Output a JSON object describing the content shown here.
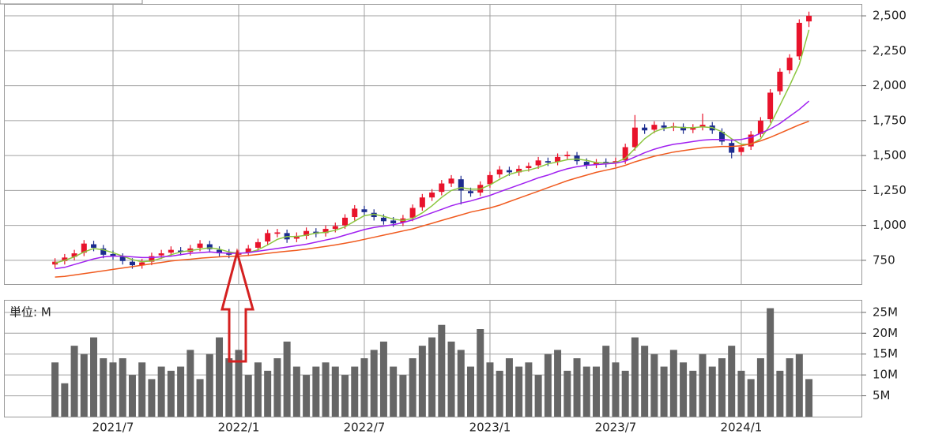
{
  "chart_data": [
    {
      "type": "candlestick",
      "open": [
        720,
        745,
        775,
        805,
        865,
        835,
        795,
        775,
        740,
        715,
        740,
        785,
        805,
        820,
        810,
        840,
        865,
        825,
        805,
        790,
        805,
        840,
        885,
        940,
        945,
        905,
        925,
        955,
        945,
        975,
        1000,
        1060,
        1115,
        1090,
        1055,
        1035,
        1020,
        1055,
        1130,
        1200,
        1240,
        1300,
        1330,
        1245,
        1235,
        1295,
        1365,
        1395,
        1380,
        1410,
        1430,
        1460,
        1455,
        1495,
        1500,
        1455,
        1435,
        1455,
        1445,
        1465,
        1560,
        1700,
        1685,
        1715,
        1700,
        1705,
        1685,
        1705,
        1715,
        1670,
        1590,
        1525,
        1565,
        1655,
        1760,
        1960,
        2110,
        2210,
        2460
      ],
      "high": [
        765,
        795,
        825,
        895,
        890,
        860,
        820,
        800,
        765,
        760,
        805,
        825,
        850,
        845,
        860,
        895,
        890,
        850,
        830,
        825,
        860,
        905,
        970,
        975,
        970,
        950,
        985,
        980,
        1000,
        1020,
        1080,
        1145,
        1140,
        1115,
        1080,
        1060,
        1075,
        1150,
        1225,
        1260,
        1325,
        1360,
        1355,
        1270,
        1315,
        1385,
        1425,
        1420,
        1430,
        1450,
        1490,
        1485,
        1515,
        1530,
        1525,
        1480,
        1475,
        1480,
        1485,
        1585,
        1790,
        1725,
        1745,
        1740,
        1735,
        1730,
        1725,
        1800,
        1740,
        1695,
        1615,
        1585,
        1675,
        1775,
        1975,
        2125,
        2225,
        2475,
        2530
      ],
      "low": [
        695,
        720,
        750,
        780,
        815,
        765,
        755,
        720,
        690,
        690,
        715,
        760,
        780,
        785,
        785,
        815,
        805,
        775,
        765,
        765,
        780,
        815,
        860,
        915,
        875,
        880,
        900,
        915,
        920,
        950,
        975,
        1035,
        1070,
        1035,
        1005,
        990,
        995,
        1030,
        1105,
        1175,
        1215,
        1275,
        1150,
        1205,
        1210,
        1270,
        1340,
        1355,
        1355,
        1385,
        1405,
        1425,
        1430,
        1470,
        1435,
        1405,
        1410,
        1415,
        1420,
        1440,
        1535,
        1655,
        1660,
        1675,
        1675,
        1655,
        1660,
        1680,
        1655,
        1575,
        1480,
        1500,
        1540,
        1630,
        1735,
        1935,
        2085,
        2185,
        2420
      ],
      "close": [
        740,
        770,
        800,
        870,
        840,
        790,
        780,
        745,
        715,
        735,
        780,
        800,
        825,
        810,
        835,
        870,
        830,
        800,
        790,
        800,
        835,
        880,
        945,
        950,
        900,
        925,
        960,
        940,
        975,
        995,
        1055,
        1120,
        1095,
        1060,
        1030,
        1015,
        1050,
        1125,
        1200,
        1235,
        1300,
        1335,
        1250,
        1230,
        1290,
        1360,
        1400,
        1380,
        1405,
        1425,
        1465,
        1450,
        1490,
        1505,
        1460,
        1430,
        1450,
        1440,
        1460,
        1560,
        1700,
        1680,
        1720,
        1700,
        1710,
        1680,
        1700,
        1720,
        1680,
        1600,
        1520,
        1560,
        1650,
        1750,
        1950,
        2100,
        2200,
        2450,
        2500
      ],
      "up_color": "#e8132b",
      "down_color": "#1c2c8f",
      "series": [
        {
          "color": "#8cc63f",
          "values": [
            730,
            750,
            775,
            810,
            835,
            825,
            805,
            780,
            755,
            740,
            745,
            765,
            790,
            810,
            820,
            830,
            840,
            830,
            810,
            800,
            805,
            825,
            860,
            900,
            920,
            920,
            930,
            945,
            950,
            965,
            990,
            1030,
            1070,
            1080,
            1065,
            1045,
            1035,
            1050,
            1090,
            1140,
            1200,
            1250,
            1270,
            1260,
            1260,
            1290,
            1330,
            1365,
            1385,
            1395,
            1415,
            1440,
            1455,
            1470,
            1475,
            1465,
            1450,
            1445,
            1450,
            1480,
            1550,
            1620,
            1670,
            1695,
            1705,
            1700,
            1700,
            1705,
            1700,
            1670,
            1620,
            1580,
            1580,
            1620,
            1720,
            1860,
            2000,
            2150,
            2400
          ]
        },
        {
          "color": "#a020f0",
          "values": [
            690,
            700,
            720,
            740,
            760,
            775,
            780,
            780,
            775,
            770,
            770,
            775,
            780,
            790,
            800,
            805,
            810,
            805,
            800,
            800,
            805,
            815,
            825,
            835,
            845,
            855,
            865,
            880,
            895,
            910,
            930,
            950,
            970,
            985,
            995,
            1005,
            1020,
            1040,
            1065,
            1090,
            1115,
            1140,
            1160,
            1175,
            1195,
            1215,
            1240,
            1265,
            1290,
            1315,
            1340,
            1360,
            1385,
            1405,
            1420,
            1430,
            1435,
            1440,
            1445,
            1460,
            1490,
            1520,
            1545,
            1565,
            1580,
            1590,
            1600,
            1610,
            1615,
            1615,
            1610,
            1615,
            1630,
            1660,
            1690,
            1730,
            1780,
            1830,
            1890
          ]
        },
        {
          "color": "#f05a1e",
          "values": [
            630,
            635,
            645,
            655,
            665,
            675,
            685,
            695,
            705,
            715,
            725,
            735,
            745,
            752,
            758,
            765,
            770,
            775,
            778,
            780,
            785,
            792,
            800,
            808,
            815,
            822,
            830,
            840,
            850,
            860,
            872,
            885,
            900,
            915,
            930,
            945,
            960,
            975,
            995,
            1015,
            1035,
            1055,
            1075,
            1095,
            1110,
            1125,
            1145,
            1170,
            1195,
            1220,
            1245,
            1270,
            1295,
            1320,
            1340,
            1360,
            1380,
            1395,
            1410,
            1430,
            1455,
            1475,
            1495,
            1510,
            1525,
            1535,
            1545,
            1555,
            1560,
            1565,
            1565,
            1570,
            1585,
            1605,
            1630,
            1660,
            1690,
            1720,
            1745
          ]
        }
      ],
      "ylim": [
        580,
        2585
      ],
      "yticks": [
        750,
        {
          "value": 1000,
          "label": "1,000"
        },
        {
          "value": 1250,
          "label": "1,250"
        },
        {
          "value": 1500,
          "label": "1,500"
        },
        {
          "value": 1750,
          "label": "1,750"
        },
        {
          "value": 2000,
          "label": "2,000"
        },
        {
          "value": 2250,
          "label": "2,250"
        },
        {
          "value": 2500,
          "label": "2,500"
        }
      ],
      "grid": true
    },
    {
      "type": "bar",
      "unit_label": "単位: M",
      "categories": [
        null,
        null,
        null,
        null,
        null,
        null,
        "2021/7",
        null,
        null,
        null,
        null,
        null,
        null,
        null,
        null,
        null,
        null,
        null,
        null,
        "2022/1",
        null,
        null,
        null,
        null,
        null,
        null,
        null,
        null,
        null,
        null,
        null,
        null,
        "2022/7",
        null,
        null,
        null,
        null,
        null,
        null,
        null,
        null,
        null,
        null,
        null,
        null,
        "2023/1",
        null,
        null,
        null,
        null,
        null,
        null,
        null,
        null,
        null,
        null,
        null,
        null,
        "2023/7",
        null,
        null,
        null,
        null,
        null,
        null,
        null,
        null,
        null,
        null,
        null,
        null,
        "2024/1",
        null,
        null,
        null,
        null,
        null,
        null,
        null
      ],
      "values": [
        13,
        8,
        17,
        15,
        19,
        14,
        13,
        14,
        10,
        13,
        9,
        12,
        11,
        12,
        16,
        9,
        15,
        19,
        14,
        16,
        10,
        13,
        11,
        14,
        18,
        12,
        10,
        12,
        13,
        12,
        10,
        12,
        14,
        16,
        18,
        12,
        10,
        14,
        17,
        19,
        22,
        18,
        16,
        12,
        21,
        13,
        11,
        14,
        12,
        13,
        10,
        15,
        16,
        11,
        14,
        12,
        12,
        17,
        13,
        11,
        19,
        17,
        15,
        12,
        16,
        13,
        11,
        15,
        12,
        14,
        17,
        11,
        9,
        14,
        26,
        11,
        14,
        15,
        9
      ],
      "color": "#666666",
      "ylim": [
        0,
        28
      ],
      "yticks": [
        {
          "value": 5,
          "label": "5M"
        },
        {
          "value": 10,
          "label": "10M"
        },
        {
          "value": 15,
          "label": "15M"
        },
        {
          "value": 20,
          "label": "20M"
        },
        {
          "value": 25,
          "label": "25M"
        }
      ],
      "grid": true
    }
  ]
}
